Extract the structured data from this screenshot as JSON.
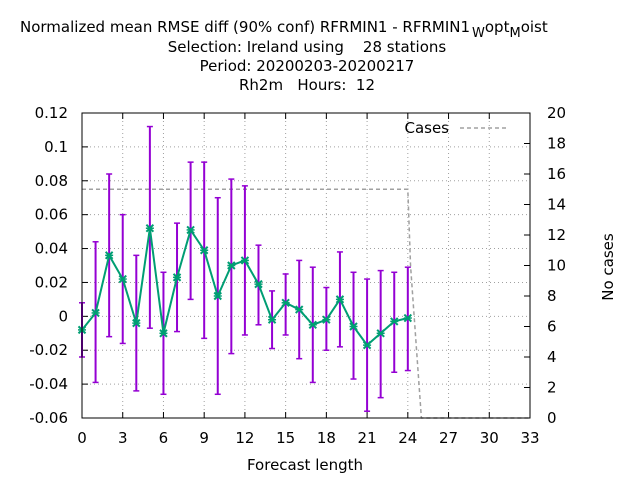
{
  "chart_data": {
    "type": "line",
    "title_lines": [
      "Normalized mean RMSE diff (90% conf) RFRMIN1 - RFRMIN1",
      "Selection: Ireland using    28 stations",
      "Period: 20200203-20200217",
      "Rh2m   Hours:  12"
    ],
    "title_tail": {
      "w": "W",
      "opt": "opt",
      "m": "M",
      "oist": "oist"
    },
    "xlabel": "Forecast length",
    "ylabel_right": "No cases",
    "xlim": [
      0,
      33
    ],
    "ylim": [
      -0.06,
      0.12
    ],
    "y2lim": [
      0,
      20
    ],
    "x_ticks": [
      "0",
      "3",
      "6",
      "9",
      "12",
      "15",
      "18",
      "21",
      "24",
      "27",
      "30",
      "33"
    ],
    "y_ticks": [
      "-0.06",
      "-0.04",
      "-0.02",
      "0",
      "0.02",
      "0.04",
      "0.06",
      "0.08",
      "0.1",
      "0.12"
    ],
    "y2_ticks": [
      "0",
      "2",
      "4",
      "6",
      "8",
      "10",
      "12",
      "14",
      "16",
      "18",
      "20"
    ],
    "grid": true,
    "legend": {
      "label": "Cases",
      "position": "top-right"
    },
    "x": [
      0,
      1,
      2,
      3,
      4,
      5,
      6,
      7,
      8,
      9,
      10,
      11,
      12,
      13,
      14,
      15,
      16,
      17,
      18,
      19,
      20,
      21,
      22,
      23,
      24
    ],
    "mean": [
      -0.008,
      0.002,
      0.036,
      0.022,
      -0.004,
      0.052,
      -0.01,
      0.023,
      0.051,
      0.039,
      0.012,
      0.03,
      0.033,
      0.019,
      -0.002,
      0.008,
      0.004,
      -0.005,
      -0.002,
      0.01,
      -0.006,
      -0.017,
      -0.01,
      -0.003,
      -0.001
    ],
    "lower": [
      -0.024,
      -0.039,
      -0.012,
      -0.016,
      -0.044,
      -0.007,
      -0.046,
      -0.009,
      0.01,
      -0.013,
      -0.046,
      -0.022,
      -0.011,
      -0.005,
      -0.019,
      -0.011,
      -0.025,
      -0.039,
      -0.02,
      -0.018,
      -0.037,
      -0.056,
      -0.048,
      -0.033,
      -0.032
    ],
    "upper": [
      0.008,
      0.044,
      0.084,
      0.06,
      0.036,
      0.112,
      0.026,
      0.055,
      0.091,
      0.091,
      0.07,
      0.081,
      0.077,
      0.042,
      0.015,
      0.025,
      0.033,
      0.029,
      0.017,
      0.038,
      0.026,
      0.022,
      0.027,
      0.026,
      0.029
    ],
    "cases_x": [
      0,
      24,
      24.2,
      25,
      33
    ],
    "cases_y": [
      15,
      15,
      10,
      0,
      0
    ],
    "colors": {
      "errorbar": "#9400d3",
      "line": "#009e73",
      "cases": "#a0a0a0",
      "grid": "#a0a0a0"
    }
  }
}
